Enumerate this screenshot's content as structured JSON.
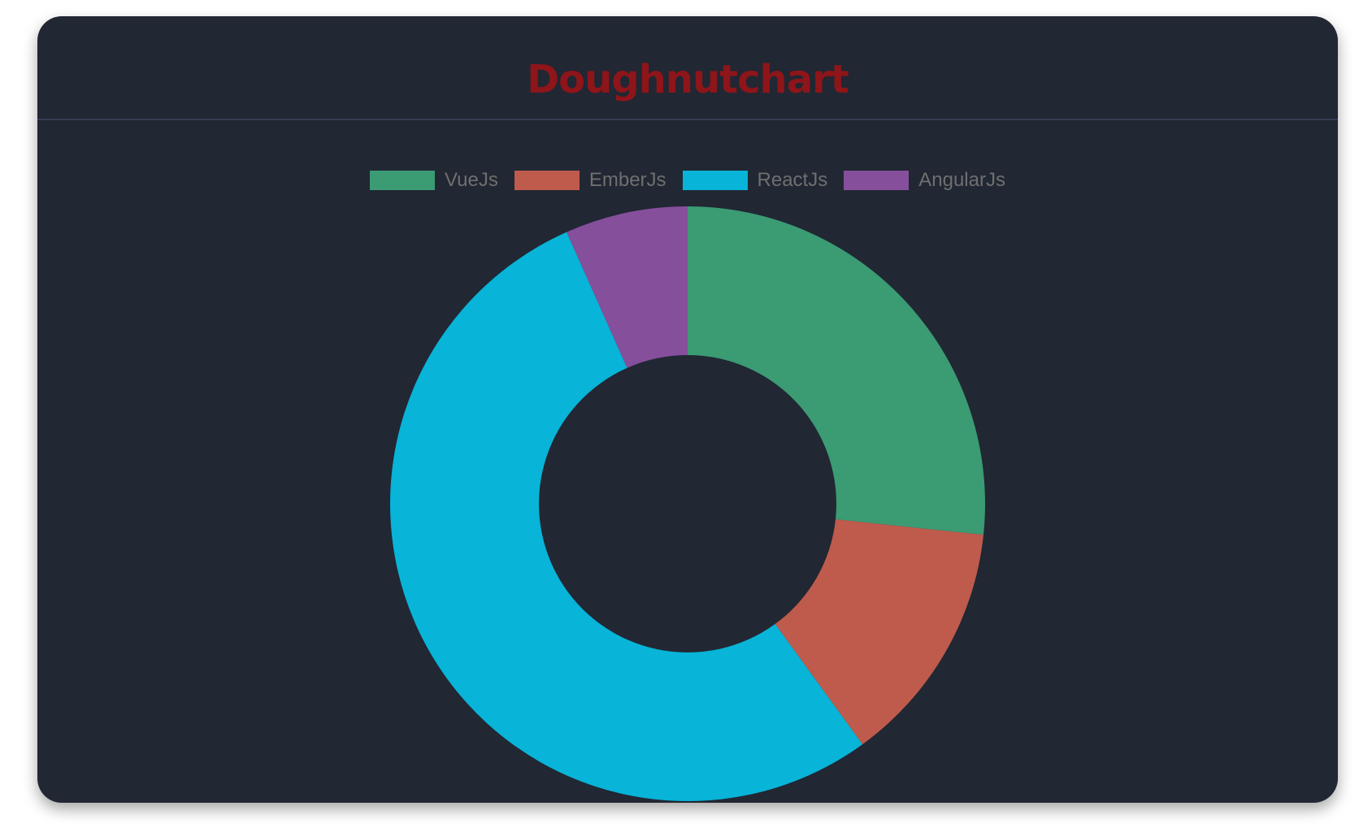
{
  "chart_data": {
    "type": "doughnut",
    "title": "Doughnutchart",
    "legend_position": "top",
    "categories": [
      "VueJs",
      "EmberJs",
      "ReactJs",
      "AngularJs"
    ],
    "values": [
      40,
      20,
      80,
      10
    ],
    "colors": [
      "#3b9b73",
      "#bf5b4c",
      "#08b4d8",
      "#864f9c"
    ],
    "background": "#212733",
    "title_color": "#8e1519"
  }
}
